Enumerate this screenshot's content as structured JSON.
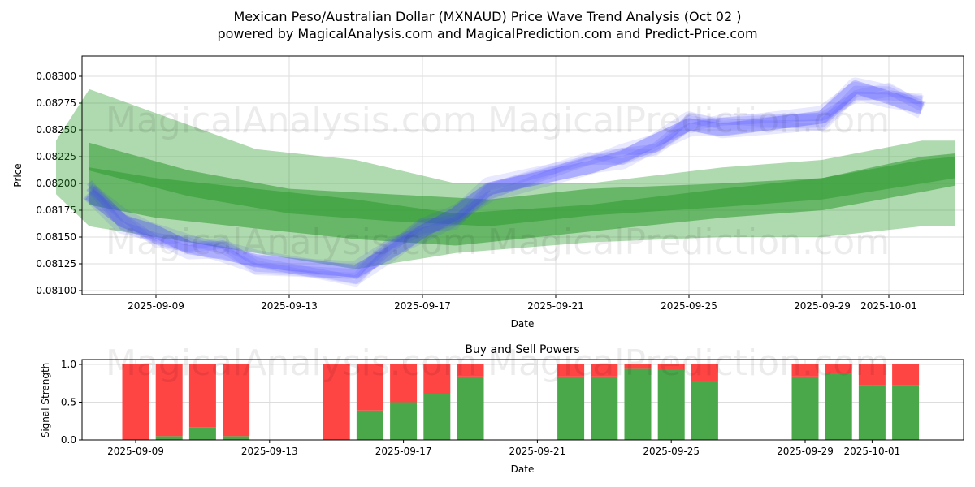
{
  "title_line1": "Mexican Peso/Australian Dollar (MXNAUD) Price Wave Trend Analysis (Oct 02 )",
  "title_line2": "powered by MagicalAnalysis.com and MagicalPrediction.com and Predict-Price.com",
  "watermarks": [
    "MagicalAnalysis.com",
    "MagicalPrediction.com"
  ],
  "colors": {
    "blue": "#4040ff",
    "green": "#2e9a2e",
    "buy": "#4aa84a",
    "sell": "#ff4444"
  },
  "chart_data": [
    {
      "type": "line",
      "title": "",
      "xlabel": "Date",
      "ylabel": "Price",
      "ylim": [
        0.08097,
        0.0832
      ],
      "yticks": [
        "0.08100",
        "0.08125",
        "0.08150",
        "0.08175",
        "0.08200",
        "0.08225",
        "0.08250",
        "0.08275",
        "0.08300"
      ],
      "xticks": [
        "2025-09-09",
        "2025-09-13",
        "2025-09-17",
        "2025-09-21",
        "2025-09-25",
        "2025-09-29",
        "2025-10-01"
      ],
      "blue_series": {
        "name": "price wave",
        "dates": [
          "2025-09-07",
          "2025-09-08",
          "2025-09-09",
          "2025-09-10",
          "2025-09-11",
          "2025-09-12",
          "2025-09-15",
          "2025-09-16",
          "2025-09-17",
          "2025-09-18",
          "2025-09-19",
          "2025-09-22",
          "2025-09-23",
          "2025-09-24",
          "2025-09-25",
          "2025-09-26",
          "2025-09-29",
          "2025-09-30",
          "2025-10-01",
          "2025-10-02"
        ],
        "values": [
          0.0819,
          0.08165,
          0.08155,
          0.0814,
          0.08135,
          0.08128,
          0.08118,
          0.08135,
          0.08155,
          0.08172,
          0.08195,
          0.08215,
          0.08225,
          0.0824,
          0.08255,
          0.0825,
          0.08262,
          0.0829,
          0.0828,
          0.0827
        ]
      },
      "green_bands": [
        {
          "dates": [
            "2025-09-06",
            "2025-09-07",
            "2025-09-12",
            "2025-09-15",
            "2025-09-18",
            "2025-09-22",
            "2025-09-26",
            "2025-09-29",
            "2025-10-02",
            "2025-10-03"
          ],
          "upper": [
            0.0824,
            0.08288,
            0.08232,
            0.08222,
            0.082,
            0.082,
            0.08215,
            0.08222,
            0.0824,
            0.0824
          ],
          "lower": [
            0.0819,
            0.0816,
            0.08135,
            0.0812,
            0.08135,
            0.08145,
            0.0815,
            0.0815,
            0.0816,
            0.0816
          ]
        },
        {
          "dates": [
            "2025-09-07",
            "2025-09-09",
            "2025-09-12",
            "2025-09-15",
            "2025-09-18",
            "2025-09-22",
            "2025-09-26",
            "2025-09-29",
            "2025-10-02",
            "2025-10-03"
          ],
          "upper": [
            0.08215,
            0.08205,
            0.08195,
            0.08185,
            0.08172,
            0.0818,
            0.08195,
            0.08205,
            0.08225,
            0.08228
          ],
          "lower": [
            0.0818,
            0.08168,
            0.08158,
            0.08148,
            0.08142,
            0.08155,
            0.08168,
            0.08175,
            0.08192,
            0.08198
          ]
        },
        {
          "dates": [
            "2025-09-07",
            "2025-09-10",
            "2025-09-13",
            "2025-09-16",
            "2025-09-19",
            "2025-09-22",
            "2025-09-26",
            "2025-09-29",
            "2025-10-02",
            "2025-10-03"
          ],
          "upper": [
            0.08238,
            0.08212,
            0.08195,
            0.0819,
            0.08185,
            0.08195,
            0.082,
            0.08205,
            0.08222,
            0.08225
          ],
          "lower": [
            0.08212,
            0.08188,
            0.08172,
            0.08165,
            0.0816,
            0.0817,
            0.08178,
            0.08185,
            0.082,
            0.08205
          ]
        }
      ]
    },
    {
      "type": "bar",
      "title": "Buy and Sell Powers",
      "xlabel": "Date",
      "ylabel": "Signal Strength",
      "ylim": [
        0,
        1.05
      ],
      "yticks": [
        "0.0",
        "0.5",
        "1.0"
      ],
      "xticks": [
        "2025-09-09",
        "2025-09-13",
        "2025-09-17",
        "2025-09-21",
        "2025-09-25",
        "2025-09-29",
        "2025-10-01"
      ],
      "dates": [
        "2025-09-09",
        "2025-09-10",
        "2025-09-11",
        "2025-09-12",
        "2025-09-15",
        "2025-09-16",
        "2025-09-17",
        "2025-09-18",
        "2025-09-19",
        "2025-09-22",
        "2025-09-23",
        "2025-09-24",
        "2025-09-25",
        "2025-09-26",
        "2025-09-29",
        "2025-09-30",
        "2025-10-01",
        "2025-10-02"
      ],
      "series": [
        {
          "name": "Buy",
          "values": [
            0,
            0.05,
            0.17,
            0.05,
            0,
            0.39,
            0.5,
            0.61,
            0.84,
            0.84,
            0.84,
            0.94,
            0.93,
            0.78,
            0.84,
            0.89,
            0.73,
            0.73
          ]
        },
        {
          "name": "Sell",
          "values": [
            1,
            0.95,
            0.83,
            0.95,
            1,
            0.61,
            0.5,
            0.39,
            0.16,
            0.16,
            0.16,
            0.06,
            0.07,
            0.22,
            0.16,
            0.11,
            0.27,
            0.27
          ]
        }
      ]
    }
  ]
}
